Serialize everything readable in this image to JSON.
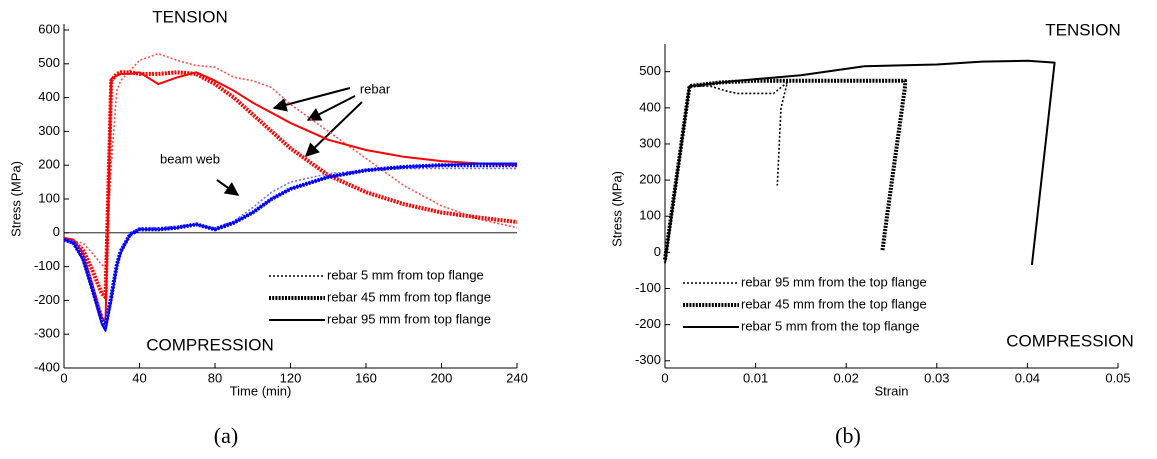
{
  "chart_data": [
    {
      "type": "line",
      "caption": "(a)",
      "xlabel": "Time (min)",
      "ylabel": "Stress (MPa)",
      "annotations": [
        "TENSION",
        "COMPRESSION",
        "rebar",
        "beam web"
      ],
      "xlim": [
        0,
        240
      ],
      "ylim": [
        -400,
        600
      ],
      "xticks": [
        0,
        40,
        80,
        120,
        160,
        200,
        240
      ],
      "yticks": [
        -400,
        -300,
        -200,
        -100,
        0,
        100,
        200,
        300,
        400,
        500,
        600
      ],
      "zero_line": true,
      "legend": "lower right",
      "legend_color": "#000000",
      "x": [
        0,
        5,
        10,
        15,
        20,
        22,
        25,
        28,
        30,
        35,
        40,
        50,
        60,
        70,
        80,
        90,
        100,
        110,
        120,
        140,
        160,
        180,
        200,
        220,
        240
      ],
      "series": [
        {
          "name": "rebar 5 mm from top flange",
          "style": "dotted",
          "color": "#ff5050",
          "values": [
            -20,
            -25,
            -30,
            -60,
            -95,
            -100,
            200,
            420,
            450,
            480,
            510,
            530,
            510,
            495,
            490,
            460,
            450,
            430,
            380,
            300,
            220,
            140,
            80,
            40,
            15
          ]
        },
        {
          "name": "rebar 45 mm from top flange",
          "style": "thick-dotted",
          "color": "#ff0000",
          "values": [
            -20,
            -25,
            -50,
            -110,
            -180,
            -190,
            450,
            470,
            475,
            475,
            470,
            470,
            475,
            470,
            440,
            400,
            350,
            300,
            250,
            170,
            120,
            85,
            60,
            45,
            32
          ]
        },
        {
          "name": "rebar 95 mm from top flange",
          "style": "solid",
          "color": "#ff0000",
          "values": [
            -15,
            -20,
            -60,
            -150,
            -250,
            -265,
            455,
            465,
            470,
            470,
            475,
            440,
            460,
            475,
            450,
            420,
            385,
            355,
            325,
            275,
            245,
            225,
            212,
            205,
            200
          ]
        },
        {
          "style": "dotted",
          "color": "#7070ff",
          "values": [
            -20,
            -25,
            -70,
            -150,
            -240,
            -260,
            -180,
            -90,
            -50,
            0,
            15,
            15,
            20,
            25,
            15,
            35,
            75,
            120,
            150,
            175,
            185,
            190,
            190,
            190,
            190
          ]
        },
        {
          "style": "thick-dotted",
          "color": "#0000ff",
          "values": [
            -20,
            -30,
            -75,
            -165,
            -260,
            -275,
            -190,
            -95,
            -55,
            -5,
            10,
            10,
            15,
            25,
            10,
            30,
            60,
            100,
            130,
            165,
            185,
            195,
            200,
            200,
            200
          ]
        },
        {
          "style": "solid",
          "color": "#0000ff",
          "values": [
            -20,
            -30,
            -80,
            -170,
            -270,
            -290,
            -200,
            -100,
            -60,
            -5,
            10,
            10,
            15,
            25,
            10,
            30,
            60,
            100,
            130,
            165,
            185,
            195,
            200,
            205,
            205
          ]
        }
      ]
    },
    {
      "type": "line",
      "caption": "(b)",
      "xlabel": "Strain",
      "ylabel": "Stress (MPa)",
      "annotations": [
        "TENSION",
        "COMPRESSION"
      ],
      "xlim": [
        0,
        0.05
      ],
      "ylim": [
        -320,
        560
      ],
      "xticks": [
        0,
        0.01,
        0.02,
        0.03,
        0.04,
        0.05
      ],
      "yticks": [
        -300,
        -200,
        -100,
        0,
        100,
        200,
        300,
        400,
        500
      ],
      "zero_line": false,
      "legend": "lower left",
      "legend_color": "#000000",
      "series": [
        {
          "name": "rebar 95 mm from the top flange",
          "style": "dotted",
          "color": "#000000",
          "x": [
            0,
            0.0027,
            0.005,
            0.007,
            0.008,
            0.012,
            0.0135,
            0.0128,
            0.0124
          ],
          "values": [
            -20,
            460,
            460,
            445,
            440,
            440,
            470,
            400,
            185
          ]
        },
        {
          "name": "rebar 45 mm from the top flange",
          "style": "thick-dotted",
          "color": "#000000",
          "x": [
            0,
            0.0027,
            0.006,
            0.01,
            0.02,
            0.0265,
            0.0265,
            0.0245,
            0.024
          ],
          "values": [
            -20,
            460,
            470,
            475,
            475,
            475,
            460,
            100,
            5
          ]
        },
        {
          "name": "rebar 5 mm from the top flange",
          "style": "solid",
          "color": "#000000",
          "x": [
            0,
            0.0027,
            0.008,
            0.015,
            0.022,
            0.03,
            0.035,
            0.04,
            0.043,
            0.042,
            0.0405
          ],
          "values": [
            -30,
            460,
            475,
            490,
            515,
            520,
            528,
            530,
            525,
            300,
            -35
          ]
        }
      ]
    }
  ]
}
